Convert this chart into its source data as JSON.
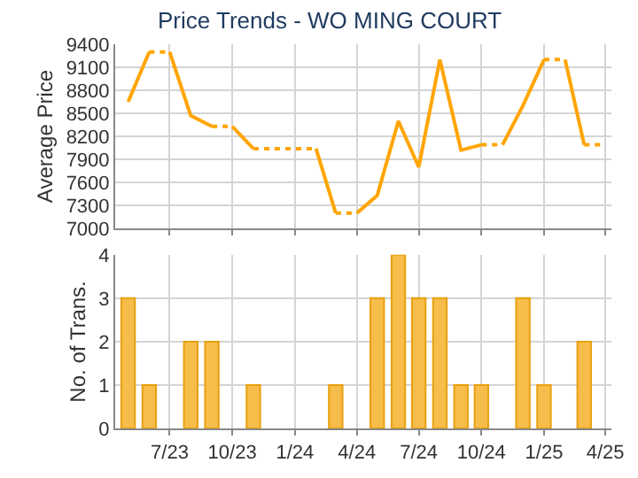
{
  "chart_data": [
    {
      "type": "line",
      "title": "Price Trends - WO MING COURT",
      "ylabel": "Average Price",
      "xlim": [
        "2023-04-12",
        "2025-04-10"
      ],
      "xticks": [
        {
          "value": "2023-07",
          "label": null
        },
        {
          "value": "2023-10",
          "label": null
        },
        {
          "value": "2024-01",
          "label": null
        },
        {
          "value": "2024-04",
          "label": null
        },
        {
          "value": "2024-07",
          "label": null
        },
        {
          "value": "2024-10",
          "label": null
        },
        {
          "value": "2025-01",
          "label": null
        },
        {
          "value": "2025-04",
          "label": null
        }
      ],
      "ylim": [
        7000,
        9400
      ],
      "yticks": [
        7000,
        7300,
        7600,
        7900,
        8200,
        8500,
        8800,
        9100,
        9400
      ],
      "grid": true,
      "tick_labels": "y",
      "marker": "none",
      "series": [
        {
          "color": "#ffa500",
          "line_style": "solid",
          "x": [
            "2023-05",
            "2023-06"
          ],
          "values": [
            8650,
            9300
          ]
        },
        {
          "color": "#ffa500",
          "line_style": "dotted",
          "x": [
            "2023-06",
            "2023-07"
          ],
          "values": [
            9300,
            9300
          ]
        },
        {
          "color": "#ffa500",
          "line_style": "solid",
          "x": [
            "2023-07",
            "2023-08",
            "2023-09"
          ],
          "values": [
            9300,
            8470,
            8330
          ]
        },
        {
          "color": "#ffa500",
          "line_style": "dotted",
          "x": [
            "2023-09",
            "2023-10"
          ],
          "values": [
            8330,
            8330
          ]
        },
        {
          "color": "#ffa500",
          "line_style": "solid",
          "x": [
            "2023-10",
            "2023-11"
          ],
          "values": [
            8330,
            8040
          ]
        },
        {
          "color": "#ffa500",
          "line_style": "dotted",
          "x": [
            "2023-11",
            "2023-12",
            "2024-01",
            "2024-02"
          ],
          "values": [
            8040,
            8040,
            8040,
            8040
          ]
        },
        {
          "color": "#ffa500",
          "line_style": "solid",
          "x": [
            "2024-02",
            "2024-03"
          ],
          "values": [
            8040,
            7200
          ]
        },
        {
          "color": "#ffa500",
          "line_style": "dotted",
          "x": [
            "2024-03",
            "2024-04"
          ],
          "values": [
            7200,
            7200
          ]
        },
        {
          "color": "#ffa500",
          "line_style": "solid",
          "x": [
            "2024-04",
            "2024-05",
            "2024-06",
            "2024-07",
            "2024-08",
            "2024-09",
            "2024-10"
          ],
          "values": [
            7200,
            7430,
            8400,
            7800,
            9200,
            8020,
            8090
          ]
        },
        {
          "color": "#ffa500",
          "line_style": "dotted",
          "x": [
            "2024-10",
            "2024-11"
          ],
          "values": [
            8090,
            8090
          ]
        },
        {
          "color": "#ffa500",
          "line_style": "solid",
          "x": [
            "2024-11",
            "2024-12",
            "2025-01"
          ],
          "values": [
            8090,
            8600,
            9200
          ]
        },
        {
          "color": "#ffa500",
          "line_style": "dotted",
          "x": [
            "2025-01",
            "2025-02"
          ],
          "values": [
            9200,
            9200
          ]
        },
        {
          "color": "#ffa500",
          "line_style": "solid",
          "x": [
            "2025-02",
            "2025-03"
          ],
          "values": [
            9200,
            8090
          ]
        },
        {
          "color": "#ffa500",
          "line_style": "dotted",
          "x": [
            "2025-03",
            "2025-04"
          ],
          "values": [
            8090,
            8090
          ]
        }
      ]
    },
    {
      "type": "bar",
      "ylabel": "No. of Trans.",
      "xlim": [
        "2023-04-12",
        "2025-04-10"
      ],
      "xticks": [
        {
          "value": "2023-07",
          "label": "7/23"
        },
        {
          "value": "2023-10",
          "label": "10/23"
        },
        {
          "value": "2024-01",
          "label": "1/24"
        },
        {
          "value": "2024-04",
          "label": "4/24"
        },
        {
          "value": "2024-07",
          "label": "7/24"
        },
        {
          "value": "2024-10",
          "label": "10/24"
        },
        {
          "value": "2025-01",
          "label": "1/25"
        },
        {
          "value": "2025-04",
          "label": "4/25"
        }
      ],
      "ylim": [
        0,
        4
      ],
      "yticks": [
        0,
        1,
        2,
        3,
        4
      ],
      "grid": true,
      "x": [
        "2023-05",
        "2023-06",
        "2023-08",
        "2023-09",
        "2023-11",
        "2024-03",
        "2024-05",
        "2024-06",
        "2024-07",
        "2024-08",
        "2024-09",
        "2024-10",
        "2024-12",
        "2025-01",
        "2025-03"
      ],
      "values": [
        3,
        1,
        2,
        2,
        1,
        1,
        3,
        4,
        3,
        3,
        1,
        1,
        3,
        1,
        2
      ],
      "color": "#f7bd4a"
    }
  ]
}
